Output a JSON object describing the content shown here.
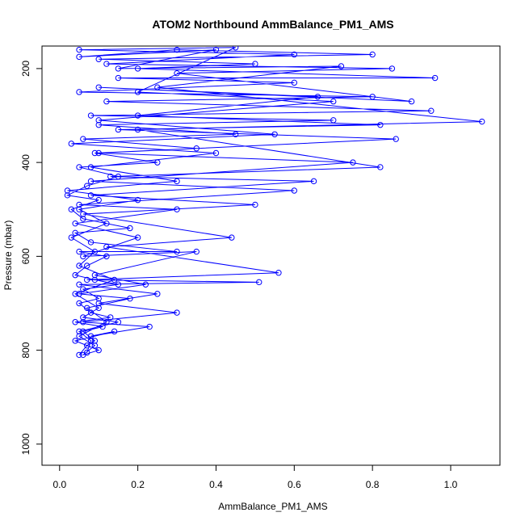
{
  "chart_data": {
    "type": "line",
    "title": "ATOM2 Northbound AmmBalance_PM1_AMS",
    "x_label": "AmmBalance_PM1_AMS",
    "y_label": "Pressure (mbar)",
    "color": "#0000ff",
    "xlim": [
      -0.045,
      1.126
    ],
    "ylim": [
      1045,
      152
    ],
    "xticks": [
      {
        "value": 0,
        "label": "0.0"
      },
      0.2,
      0.4,
      0.6,
      0.8,
      {
        "value": 1,
        "label": "1.0"
      }
    ],
    "yticks": [
      200,
      400,
      600,
      800,
      1000
    ],
    "x": [
      0.05,
      0.07,
      0.09,
      0.06,
      0.11,
      0.04,
      0.13,
      0.08,
      0.05,
      0.1,
      0.06,
      0.15,
      0.09,
      0.04,
      0.07,
      0.12,
      0.05,
      0.3,
      0.08,
      0.04,
      0.18,
      0.06,
      0.03,
      0.1,
      0.02,
      0.07,
      0.15,
      0.05,
      0.25,
      0.09,
      0.35,
      0.06,
      0.45,
      0.1,
      0.7,
      0.08,
      0.95,
      0.12,
      0.8,
      0.05,
      0.6,
      0.15,
      0.96,
      0.2,
      0.5,
      0.1,
      0.8,
      0.3,
      0.05,
      0.4,
      0.15,
      0.72,
      0.25,
      1.08,
      0.2,
      0.82,
      0.13,
      0.65,
      0.08,
      0.5,
      0.06,
      0.44,
      0.12,
      0.56,
      0.07,
      0.51,
      0.05,
      0.25,
      0.1,
      0.3,
      0.06,
      0.23,
      0.08,
      0.14,
      0.04,
      0.1,
      0.06,
      0.09,
      0.05,
      0.12,
      0.07,
      0.18,
      0.05,
      0.22,
      0.09,
      0.35,
      0.06,
      0.2,
      0.04,
      0.3,
      0.05,
      0.6,
      0.08,
      0.75,
      0.1,
      0.86,
      0.15,
      0.82,
      0.2,
      0.66,
      0.1,
      0.9,
      0.3,
      0.85,
      0.12,
      0.6,
      0.05,
      0.45,
      0.2,
      0.7,
      0.1,
      0.55,
      0.03,
      0.4,
      0.08,
      0.3,
      0.02,
      0.2,
      0.05,
      0.12,
      0.03,
      0.09,
      0.05,
      0.14,
      0.04,
      0.1,
      0.06,
      0.15,
      0.05,
      0.08,
      0.07
    ],
    "values": [
      810,
      790,
      780,
      760,
      750,
      740,
      730,
      720,
      700,
      690,
      670,
      660,
      650,
      640,
      620,
      600,
      590,
      590,
      570,
      550,
      540,
      520,
      500,
      480,
      470,
      450,
      430,
      410,
      400,
      380,
      370,
      350,
      340,
      320,
      310,
      300,
      290,
      270,
      260,
      250,
      230,
      220,
      220,
      200,
      190,
      180,
      170,
      160,
      175,
      160,
      200,
      195,
      240,
      313,
      330,
      410,
      430,
      440,
      470,
      490,
      510,
      560,
      580,
      635,
      650,
      655,
      660,
      680,
      700,
      720,
      740,
      750,
      770,
      760,
      780,
      800,
      810,
      790,
      770,
      740,
      710,
      690,
      680,
      660,
      640,
      590,
      600,
      560,
      530,
      500,
      490,
      460,
      440,
      400,
      380,
      350,
      330,
      320,
      300,
      260,
      240,
      270,
      210,
      200,
      190,
      170,
      160,
      155,
      250,
      270,
      310,
      340,
      360,
      380,
      410,
      440,
      460,
      480,
      500,
      530,
      560,
      590,
      620,
      650,
      680,
      710,
      730,
      740,
      760,
      780,
      805
    ]
  }
}
